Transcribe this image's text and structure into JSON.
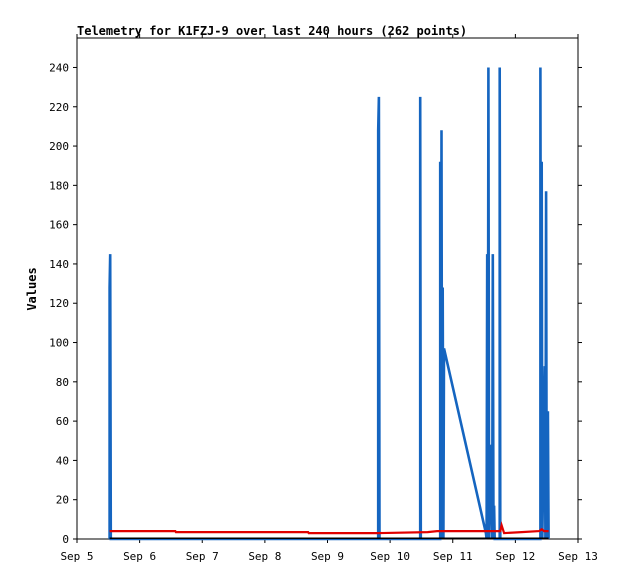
{
  "chart_data": {
    "type": "line",
    "title": "Telemetry for K1FZJ-9 over last 240 hours (262 points)",
    "xlabel": "",
    "ylabel": "Values",
    "x_ticks": [
      "Sep 5",
      "Sep 6",
      "Sep 7",
      "Sep 8",
      "Sep 9",
      "Sep 10",
      "Sep 11",
      "Sep 12",
      "Sep 13"
    ],
    "x_range_days": [
      5,
      13
    ],
    "y_ticks": [
      0,
      20,
      40,
      60,
      80,
      100,
      120,
      140,
      160,
      180,
      200,
      220,
      240
    ],
    "ylim": [
      0,
      255
    ],
    "grid": false,
    "legend": "none",
    "series": [
      {
        "color": "#1565c0",
        "points": [
          [
            5.52,
            0
          ],
          [
            5.52,
            128
          ],
          [
            5.53,
            145
          ],
          [
            5.54,
            0
          ],
          [
            9.81,
            0
          ],
          [
            9.81,
            208
          ],
          [
            9.82,
            225
          ],
          [
            9.83,
            0
          ],
          [
            10.48,
            0
          ],
          [
            10.48,
            225
          ],
          [
            10.49,
            0
          ],
          [
            10.8,
            0
          ],
          [
            10.8,
            192
          ],
          [
            10.81,
            0
          ],
          [
            10.82,
            208
          ],
          [
            10.83,
            0
          ],
          [
            10.84,
            128
          ],
          [
            10.85,
            0
          ],
          [
            10.86,
            97
          ],
          [
            11.53,
            3
          ],
          [
            11.54,
            0
          ],
          [
            11.55,
            145
          ],
          [
            11.56,
            0
          ],
          [
            11.57,
            240
          ],
          [
            11.58,
            0
          ],
          [
            11.62,
            48
          ],
          [
            11.63,
            0
          ],
          [
            11.64,
            145
          ],
          [
            11.65,
            0
          ],
          [
            11.66,
            17
          ],
          [
            11.67,
            0
          ],
          [
            11.75,
            0
          ],
          [
            11.75,
            240
          ],
          [
            11.76,
            0
          ],
          [
            12.4,
            0
          ],
          [
            12.4,
            240
          ],
          [
            12.41,
            0
          ],
          [
            12.42,
            192
          ],
          [
            12.43,
            0
          ],
          [
            12.47,
            88
          ],
          [
            12.48,
            0
          ],
          [
            12.49,
            177
          ],
          [
            12.5,
            0
          ],
          [
            12.52,
            65
          ],
          [
            12.53,
            0
          ]
        ]
      },
      {
        "color": "#e00000",
        "points": [
          [
            5.52,
            4
          ],
          [
            6.57,
            4
          ],
          [
            6.58,
            3.5
          ],
          [
            8.69,
            3.5
          ],
          [
            8.7,
            3
          ],
          [
            9.81,
            3
          ],
          [
            10.6,
            3.5
          ],
          [
            10.75,
            4
          ],
          [
            11.76,
            4
          ],
          [
            11.78,
            7
          ],
          [
            11.82,
            3
          ],
          [
            12.1,
            3.5
          ],
          [
            12.38,
            4
          ],
          [
            12.42,
            5
          ],
          [
            12.46,
            4
          ],
          [
            12.53,
            4
          ]
        ]
      },
      {
        "color": "#000000",
        "points": [
          [
            5.52,
            0.4
          ],
          [
            12.53,
            0.4
          ]
        ]
      }
    ]
  }
}
